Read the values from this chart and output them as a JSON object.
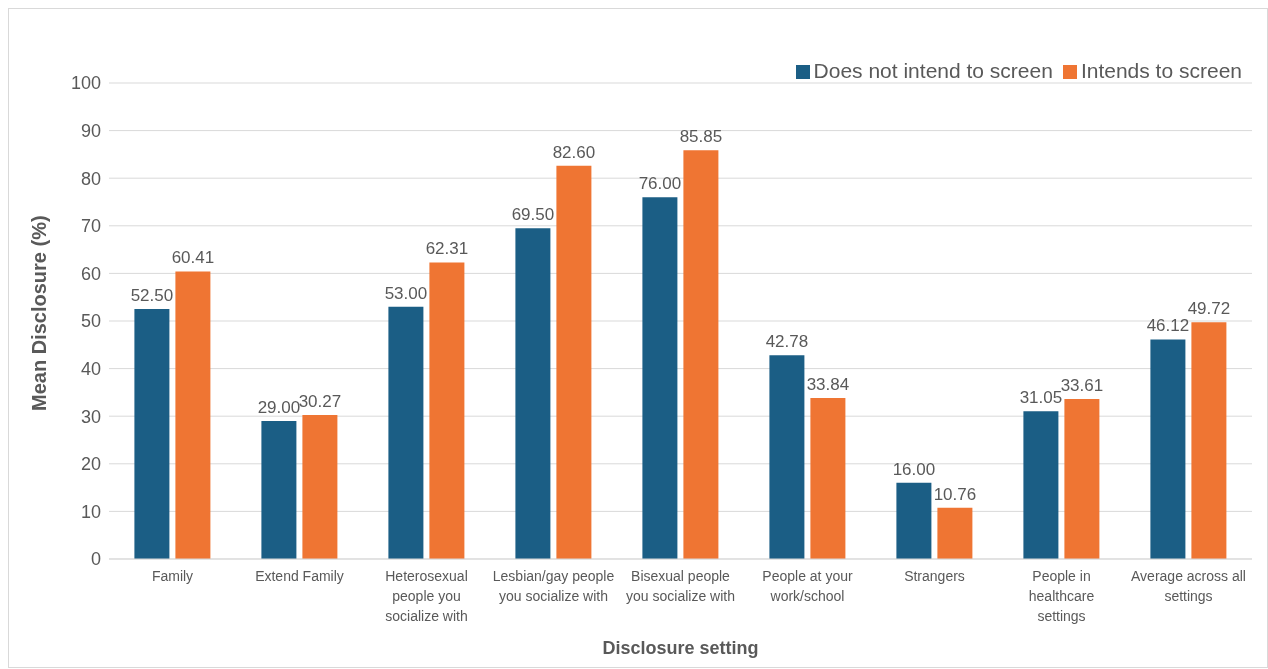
{
  "chart_data": {
    "type": "bar",
    "xlabel": "Disclosure setting",
    "ylabel": "Mean Disclosure (%)",
    "categories": [
      "Family",
      "Extend Family",
      "Heterosexual people you socialize with",
      "Lesbian/gay people you socialize with",
      "Bisexual people you socialize with",
      "People at your work/school",
      "Strangers",
      "People in healthcare settings",
      "Average across all settings"
    ],
    "series": [
      {
        "name": "Does not intend to screen",
        "color": "#1b5e85",
        "values": [
          52.5,
          29,
          53,
          69.5,
          76,
          42.78,
          16,
          31.05,
          46.12
        ],
        "value_labels": [
          "52.50",
          "29.00",
          "53.00",
          "69.50",
          "76.00",
          "42.78",
          "16.00",
          "31.05",
          "46.12"
        ]
      },
      {
        "name": "Intends to screen",
        "color": "#ef7533",
        "values": [
          60.41,
          30.27,
          62.31,
          82.6,
          85.85,
          33.84,
          10.76,
          33.61,
          49.72
        ],
        "value_labels": [
          "60.41",
          "30.27",
          "62.31",
          "82.60",
          "85.85",
          "33.84",
          "10.76",
          "33.61",
          "49.72"
        ]
      }
    ],
    "ylim": [
      0,
      100
    ],
    "yticks": [
      0,
      10,
      20,
      30,
      40,
      50,
      60,
      70,
      80,
      90,
      100
    ],
    "grid": "y",
    "legend": "top right"
  }
}
